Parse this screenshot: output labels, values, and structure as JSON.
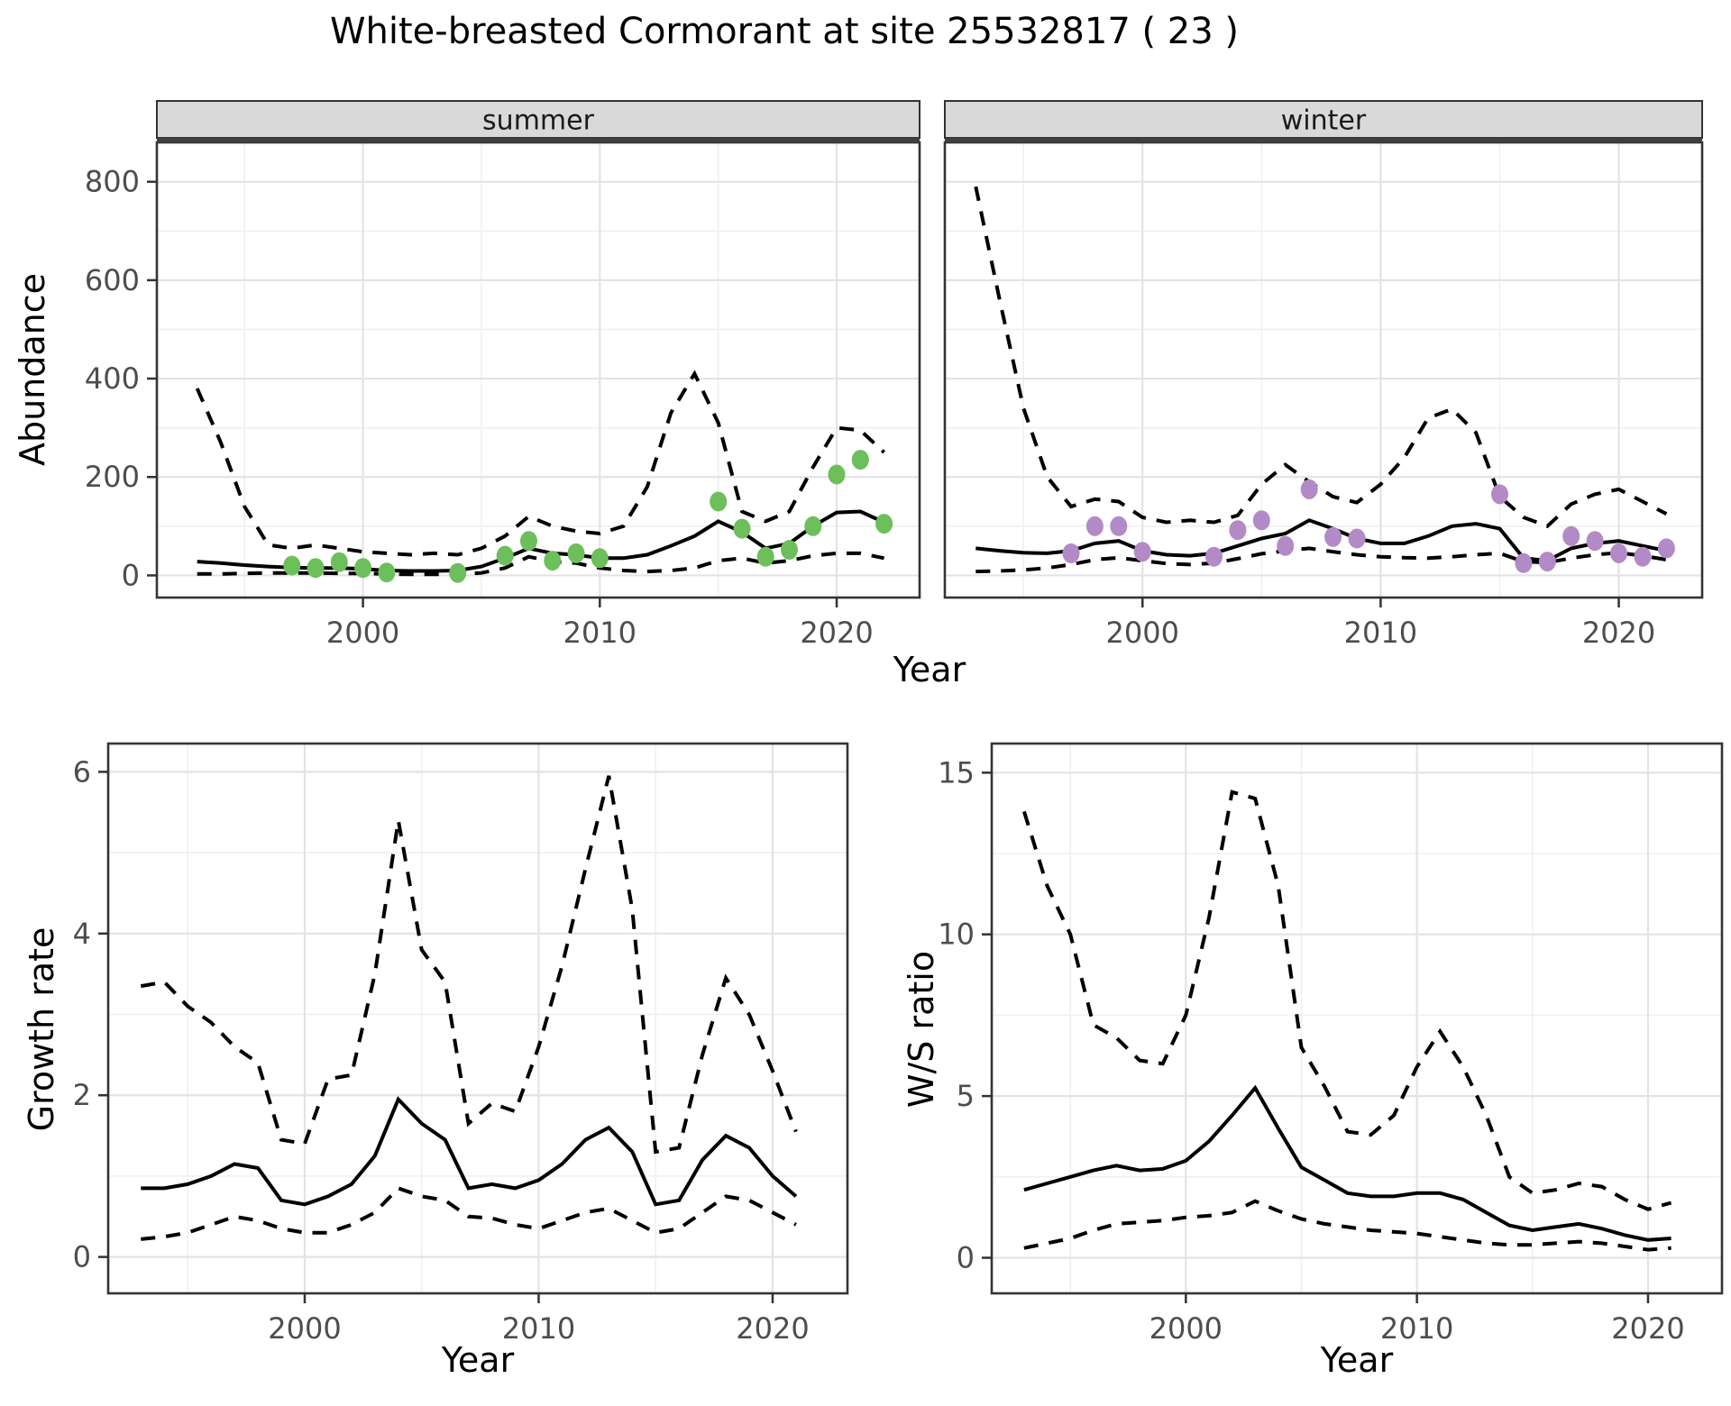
{
  "title": "White-breasted Cormorant at site 25532817 ( 23 )",
  "axis_labels": {
    "abundance": "Abundance",
    "year": "Year",
    "growth": "Growth rate",
    "ws": "W/S ratio"
  },
  "colors": {
    "line": "#000000",
    "border": "#343434",
    "grid_major": "#E3E3E3",
    "grid_minor": "#F0F0F0",
    "strip_fill": "#D9D9D9",
    "strip_edge": "#333333",
    "strip_bottom_bar": "#3F3F3F",
    "tick": "#333333",
    "tick_label": "#4D4D4D",
    "facet_label": "#1A1A1A",
    "point_summer": "#6CBF5B",
    "point_winter": "#B28AC6",
    "panel_bg": "#FFFFFF"
  },
  "chart_data": [
    {
      "id": "summer",
      "type": "line",
      "facet_label": "summer",
      "y_ticks": true,
      "x": {
        "domain": [
          1991.3,
          2023.5
        ],
        "major": [
          2000,
          2010,
          2020
        ],
        "minor": [
          1995,
          2005,
          2015
        ]
      },
      "y": {
        "domain": [
          -45,
          880
        ],
        "major": [
          0,
          200,
          400,
          600,
          800
        ],
        "minor": [
          100,
          300,
          500,
          700
        ]
      },
      "years": [
        1993,
        1994,
        1995,
        1996,
        1997,
        1998,
        1999,
        2000,
        2001,
        2002,
        2003,
        2004,
        2005,
        2006,
        2007,
        2008,
        2009,
        2010,
        2011,
        2012,
        2013,
        2014,
        2015,
        2016,
        2017,
        2018,
        2019,
        2020,
        2021,
        2022
      ],
      "series": [
        {
          "name": "upper95",
          "style": "dashed",
          "values": [
            380,
            270,
            140,
            62,
            55,
            62,
            55,
            48,
            45,
            42,
            45,
            42,
            55,
            80,
            120,
            100,
            90,
            85,
            100,
            180,
            330,
            410,
            310,
            130,
            110,
            130,
            220,
            300,
            295,
            250
          ]
        },
        {
          "name": "lower95",
          "style": "dashed",
          "values": [
            3,
            3,
            4,
            5,
            5,
            5,
            4,
            4,
            3,
            2,
            2,
            2,
            5,
            15,
            38,
            28,
            25,
            15,
            10,
            8,
            10,
            15,
            30,
            35,
            25,
            30,
            40,
            45,
            45,
            35
          ]
        },
        {
          "name": "fit",
          "style": "solid",
          "values": [
            28,
            25,
            21,
            18,
            16,
            15,
            15,
            13,
            10,
            9,
            9,
            10,
            18,
            35,
            55,
            45,
            42,
            35,
            35,
            42,
            60,
            80,
            110,
            88,
            55,
            65,
            100,
            128,
            130,
            108
          ]
        }
      ],
      "points": {
        "color_key": "point_summer",
        "years": [
          1997,
          1998,
          1999,
          2000,
          2001,
          2004,
          2006,
          2007,
          2008,
          2009,
          2010,
          2015,
          2016,
          2017,
          2018,
          2019,
          2020,
          2021,
          2022
        ],
        "values": [
          20,
          15,
          27,
          15,
          6,
          5,
          40,
          70,
          30,
          45,
          35,
          150,
          95,
          38,
          52,
          100,
          205,
          235,
          105
        ]
      }
    },
    {
      "id": "winter",
      "type": "line",
      "facet_label": "winter",
      "y_ticks": false,
      "x": {
        "domain": [
          1991.7,
          2023.5
        ],
        "major": [
          2000,
          2010,
          2020
        ],
        "minor": [
          1995,
          2005,
          2015
        ]
      },
      "y": {
        "domain": [
          -45,
          880
        ],
        "major": [
          0,
          200,
          400,
          600,
          800
        ],
        "minor": [
          100,
          300,
          500,
          700
        ]
      },
      "years": [
        1993,
        1994,
        1995,
        1996,
        1997,
        1998,
        1999,
        2000,
        2001,
        2002,
        2003,
        2004,
        2005,
        2006,
        2007,
        2008,
        2009,
        2010,
        2011,
        2012,
        2013,
        2014,
        2015,
        2016,
        2017,
        2018,
        2019,
        2020,
        2021,
        2022
      ],
      "series": [
        {
          "name": "upper95",
          "style": "dashed",
          "values": [
            790,
            560,
            340,
            200,
            140,
            155,
            150,
            118,
            108,
            112,
            108,
            122,
            185,
            225,
            190,
            160,
            148,
            185,
            240,
            320,
            338,
            290,
            160,
            118,
            100,
            145,
            165,
            175,
            150,
            125
          ]
        },
        {
          "name": "lower95",
          "style": "dashed",
          "values": [
            8,
            9,
            11,
            15,
            22,
            32,
            36,
            30,
            24,
            22,
            25,
            34,
            44,
            50,
            55,
            48,
            42,
            38,
            36,
            35,
            38,
            42,
            45,
            28,
            26,
            35,
            42,
            46,
            40,
            32
          ]
        },
        {
          "name": "fit",
          "style": "solid",
          "values": [
            55,
            50,
            46,
            45,
            50,
            65,
            70,
            50,
            42,
            40,
            45,
            60,
            75,
            85,
            112,
            95,
            75,
            65,
            65,
            80,
            100,
            105,
            95,
            35,
            30,
            55,
            65,
            70,
            60,
            50
          ]
        }
      ],
      "points": {
        "color_key": "point_winter",
        "years": [
          1997,
          1998,
          1999,
          2000,
          2003,
          2004,
          2005,
          2006,
          2007,
          2008,
          2009,
          2015,
          2016,
          2017,
          2018,
          2019,
          2020,
          2021,
          2022
        ],
        "values": [
          45,
          100,
          100,
          48,
          38,
          92,
          112,
          60,
          175,
          78,
          75,
          165,
          25,
          28,
          80,
          70,
          45,
          38,
          55
        ]
      }
    },
    {
      "id": "growth",
      "type": "line",
      "facet_label": null,
      "y_ticks": true,
      "x": {
        "domain": [
          1991.6,
          2023.2
        ],
        "major": [
          2000,
          2010,
          2020
        ],
        "minor": [
          1995,
          2005,
          2015
        ]
      },
      "y": {
        "domain": [
          -0.45,
          6.35
        ],
        "major": [
          0,
          2,
          4,
          6
        ],
        "minor": [
          1,
          3,
          5
        ]
      },
      "years": [
        1993,
        1994,
        1995,
        1996,
        1997,
        1998,
        1999,
        2000,
        2001,
        2002,
        2003,
        2004,
        2005,
        2006,
        2007,
        2008,
        2009,
        2010,
        2011,
        2012,
        2013,
        2014,
        2015,
        2016,
        2017,
        2018,
        2019,
        2020,
        2021
      ],
      "series": [
        {
          "name": "upper95",
          "style": "dashed",
          "values": [
            3.35,
            3.4,
            3.1,
            2.9,
            2.6,
            2.4,
            1.45,
            1.4,
            2.2,
            2.25,
            3.5,
            5.4,
            3.8,
            3.4,
            1.65,
            1.9,
            1.8,
            2.6,
            3.6,
            4.8,
            5.95,
            4.3,
            1.3,
            1.35,
            2.5,
            3.45,
            3.0,
            2.3,
            1.55
          ]
        },
        {
          "name": "lower95",
          "style": "dashed",
          "values": [
            0.22,
            0.25,
            0.3,
            0.4,
            0.5,
            0.45,
            0.35,
            0.3,
            0.3,
            0.4,
            0.55,
            0.85,
            0.75,
            0.7,
            0.5,
            0.48,
            0.4,
            0.35,
            0.45,
            0.55,
            0.6,
            0.45,
            0.3,
            0.35,
            0.55,
            0.75,
            0.7,
            0.55,
            0.4
          ]
        },
        {
          "name": "fit",
          "style": "solid",
          "values": [
            0.85,
            0.85,
            0.9,
            1.0,
            1.15,
            1.1,
            0.7,
            0.65,
            0.75,
            0.9,
            1.25,
            1.95,
            1.65,
            1.45,
            0.85,
            0.9,
            0.85,
            0.95,
            1.15,
            1.45,
            1.6,
            1.3,
            0.65,
            0.7,
            1.2,
            1.5,
            1.35,
            1.0,
            0.75
          ]
        }
      ],
      "points": null
    },
    {
      "id": "ws",
      "type": "line",
      "facet_label": null,
      "y_ticks": true,
      "x": {
        "domain": [
          1991.6,
          2023.2
        ],
        "major": [
          2000,
          2010,
          2020
        ],
        "minor": [
          1995,
          2005,
          2015
        ]
      },
      "y": {
        "domain": [
          -1.1,
          15.9
        ],
        "major": [
          0,
          5,
          10,
          15
        ],
        "minor": [
          2.5,
          7.5,
          12.5
        ]
      },
      "years": [
        1993,
        1994,
        1995,
        1996,
        1997,
        1998,
        1999,
        2000,
        2001,
        2002,
        2003,
        2004,
        2005,
        2006,
        2007,
        2008,
        2009,
        2010,
        2011,
        2012,
        2013,
        2014,
        2015,
        2016,
        2017,
        2018,
        2019,
        2020,
        2021
      ],
      "series": [
        {
          "name": "upper95",
          "style": "dashed",
          "values": [
            13.8,
            11.5,
            10.0,
            7.2,
            6.8,
            6.1,
            6.0,
            7.5,
            10.5,
            14.4,
            14.2,
            11.5,
            6.5,
            5.3,
            3.9,
            3.8,
            4.4,
            5.9,
            7.0,
            5.9,
            4.4,
            2.5,
            2.0,
            2.1,
            2.3,
            2.2,
            1.8,
            1.5,
            1.7
          ]
        },
        {
          "name": "lower95",
          "style": "dashed",
          "values": [
            0.3,
            0.45,
            0.6,
            0.85,
            1.05,
            1.1,
            1.15,
            1.25,
            1.3,
            1.4,
            1.75,
            1.45,
            1.2,
            1.05,
            0.95,
            0.85,
            0.8,
            0.75,
            0.65,
            0.55,
            0.45,
            0.4,
            0.4,
            0.45,
            0.5,
            0.45,
            0.35,
            0.25,
            0.3
          ]
        },
        {
          "name": "fit",
          "style": "solid",
          "values": [
            2.1,
            2.3,
            2.5,
            2.7,
            2.85,
            2.7,
            2.75,
            3.0,
            3.6,
            4.4,
            5.25,
            4.0,
            2.8,
            2.4,
            2.0,
            1.9,
            1.9,
            2.0,
            2.0,
            1.8,
            1.4,
            1.0,
            0.85,
            0.95,
            1.05,
            0.9,
            0.7,
            0.55,
            0.6
          ]
        }
      ],
      "points": null
    }
  ]
}
